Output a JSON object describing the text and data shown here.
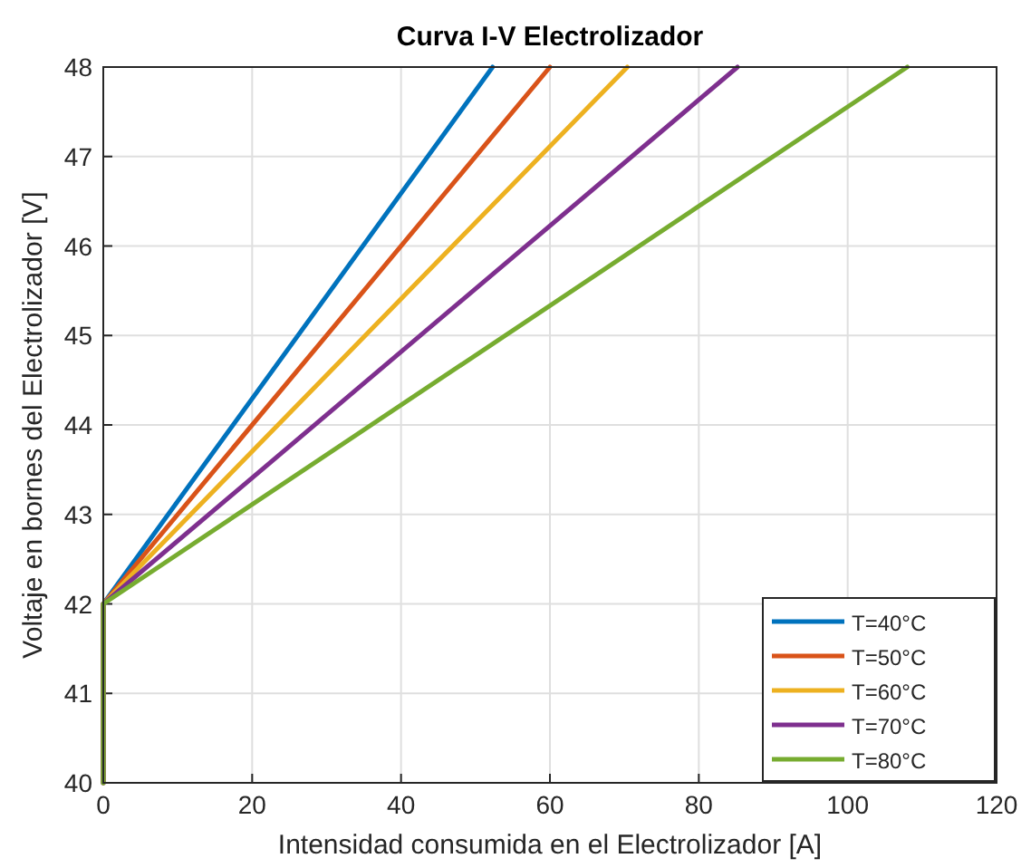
{
  "chart_data": {
    "type": "line",
    "title": "Curva I-V Electrolizador",
    "xlabel": "Intensidad consumida en el Electrolizador [A]",
    "ylabel": "Voltaje en bornes del Electrolizador [V]",
    "series": [
      {
        "name": "T=40°C",
        "color": "#0072bd",
        "x": [
          0,
          0,
          52.3
        ],
        "values": [
          40,
          42,
          48
        ]
      },
      {
        "name": "T=50°C",
        "color": "#d95319",
        "x": [
          0,
          0,
          60
        ],
        "values": [
          40,
          42,
          48
        ]
      },
      {
        "name": "T=60°C",
        "color": "#edb120",
        "x": [
          0,
          0,
          70.4
        ],
        "values": [
          40,
          42,
          48
        ]
      },
      {
        "name": "T=70°C",
        "color": "#7e2f8e",
        "x": [
          0,
          0,
          85.2
        ],
        "values": [
          40,
          42,
          48
        ]
      },
      {
        "name": "T=80°C",
        "color": "#77ac30",
        "x": [
          0,
          0,
          108
        ],
        "values": [
          40,
          42,
          48
        ]
      }
    ],
    "xlim": [
      0,
      120
    ],
    "xticks": [
      0,
      20,
      40,
      60,
      80,
      100,
      120
    ],
    "ylim": [
      40,
      48
    ],
    "yticks": [
      40,
      41,
      42,
      43,
      44,
      45,
      46,
      47,
      48
    ],
    "grid": true,
    "legend": "bottom right",
    "line_style": "solid",
    "marker": "none"
  }
}
